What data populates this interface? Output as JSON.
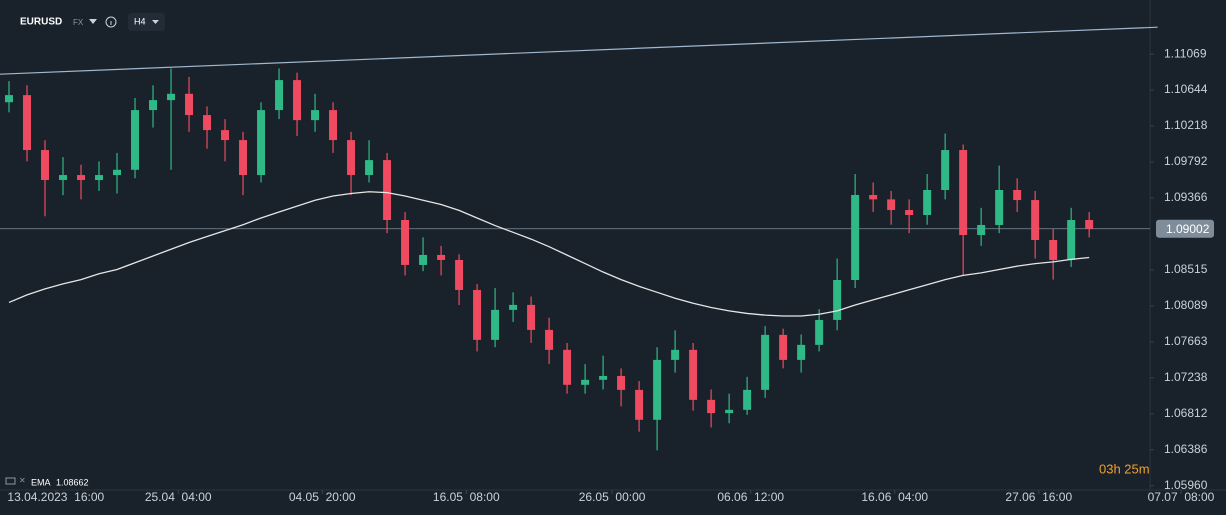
{
  "chart_data": {
    "type": "candlestick",
    "symbol": "EURUSD",
    "market": "FX",
    "timeframe": "H4",
    "colors": {
      "up": "#2fb986",
      "down": "#ef4a5f"
    },
    "open": [
      1.105,
      1.10584,
      1.09934,
      1.09579,
      1.09638,
      1.09579,
      1.09638,
      1.097,
      1.10407,
      1.10525,
      1.106,
      1.10348,
      1.1017,
      1.10052,
      1.09638,
      1.10407,
      1.10762,
      1.10288,
      1.10407,
      1.10052,
      1.09638,
      1.09815,
      1.09106,
      1.08574,
      1.08692,
      1.08633,
      1.08278,
      1.07687,
      1.08042,
      1.08101,
      1.07805,
      1.07569,
      1.07155,
      1.07214,
      1.0726,
      1.07095,
      1.06741,
      1.0745,
      1.07569,
      1.06977,
      1.0682,
      1.06859,
      1.07095,
      1.07746,
      1.0745,
      1.07628,
      1.07923,
      1.08396,
      1.09402,
      1.0935,
      1.09224,
      1.09165,
      1.09461,
      1.09934,
      1.08928,
      1.09047,
      1.09461,
      1.09342,
      1.08869,
      1.08633,
      1.09106
    ],
    "high": [
      1.1075,
      1.107,
      1.1005,
      1.0985,
      1.0976,
      1.098,
      1.099,
      1.1055,
      1.107,
      1.109,
      1.108,
      1.1045,
      1.103,
      1.1015,
      1.105,
      1.109,
      1.1085,
      1.106,
      1.105,
      1.1015,
      1.1005,
      1.099,
      1.092,
      1.089,
      1.088,
      1.087,
      1.0835,
      1.083,
      1.0825,
      1.082,
      1.0795,
      1.0765,
      1.074,
      1.075,
      1.0735,
      1.072,
      1.076,
      1.078,
      1.0765,
      1.071,
      1.0705,
      1.0725,
      1.0785,
      1.0782,
      1.0775,
      1.0805,
      1.0865,
      1.0965,
      1.0955,
      1.0945,
      1.0935,
      1.0965,
      1.1013,
      1.1,
      1.0925,
      1.0975,
      1.096,
      1.0945,
      1.09,
      1.0925,
      1.092
    ],
    "low": [
      1.1038,
      1.098,
      1.0915,
      1.094,
      1.0935,
      1.0945,
      1.0942,
      1.096,
      1.102,
      1.097,
      1.1015,
      1.0995,
      1.098,
      1.094,
      1.0955,
      1.103,
      1.101,
      1.1015,
      1.099,
      1.094,
      1.0955,
      1.0895,
      1.0845,
      1.085,
      1.0845,
      1.081,
      1.0755,
      1.076,
      1.079,
      1.0765,
      1.074,
      1.0705,
      1.0705,
      1.071,
      1.069,
      1.066,
      1.0638,
      1.073,
      1.0685,
      1.0665,
      1.067,
      1.068,
      1.07,
      1.0735,
      1.073,
      1.0755,
      1.078,
      1.083,
      1.092,
      1.0905,
      1.0895,
      1.0905,
      1.0935,
      1.0845,
      1.088,
      1.0895,
      1.092,
      1.0865,
      1.084,
      1.0855,
      1.089
    ],
    "close": [
      1.10584,
      1.09934,
      1.09579,
      1.09638,
      1.09579,
      1.09638,
      1.097,
      1.10407,
      1.10525,
      1.106,
      1.10348,
      1.1017,
      1.10052,
      1.09638,
      1.10407,
      1.10762,
      1.10288,
      1.10407,
      1.10052,
      1.09638,
      1.09815,
      1.09106,
      1.08574,
      1.08692,
      1.08633,
      1.08278,
      1.07687,
      1.08042,
      1.08101,
      1.07805,
      1.07569,
      1.07155,
      1.07214,
      1.0726,
      1.07095,
      1.06741,
      1.0745,
      1.07569,
      1.06977,
      1.0682,
      1.06859,
      1.07095,
      1.07746,
      1.0745,
      1.07628,
      1.07923,
      1.08396,
      1.09402,
      1.0935,
      1.09224,
      1.09165,
      1.09461,
      1.09934,
      1.08928,
      1.09047,
      1.09461,
      1.09342,
      1.08869,
      1.08633,
      1.09106,
      1.09002
    ],
    "ema": {
      "name": "EMA",
      "value": 1.08662,
      "color": "#e6e6e6",
      "values": [
        1.0813,
        1.0822,
        1.0829,
        1.0835,
        1.084,
        1.0847,
        1.0852,
        1.086,
        1.0868,
        1.0876,
        1.0884,
        1.0891,
        1.0898,
        1.0905,
        1.0913,
        1.092,
        1.0927,
        1.0934,
        1.0939,
        1.0942,
        1.0944,
        1.0943,
        1.0939,
        1.0934,
        1.0929,
        1.0922,
        1.0913,
        1.0904,
        1.0896,
        1.0888,
        1.0879,
        1.0869,
        1.0859,
        1.0849,
        1.084,
        1.0832,
        1.0825,
        1.0818,
        1.0812,
        1.0807,
        1.0803,
        1.08,
        1.0798,
        1.0797,
        1.0797,
        1.0799,
        1.0803,
        1.081,
        1.0816,
        1.0822,
        1.0828,
        1.0834,
        1.084,
        1.0845,
        1.0848,
        1.0852,
        1.0856,
        1.0859,
        1.0861,
        1.0864,
        1.08662
      ]
    },
    "trendline": {
      "color": "#9fb8d0",
      "x": [
        -0.5,
        63.8
      ],
      "y": [
        1.10832,
        1.11388
      ]
    },
    "last_price": {
      "value": 1.09002,
      "color": "#7f8d9b"
    },
    "countdown": "03h 25m",
    "xlim": [
      -0.5,
      67.6
    ],
    "xticks": [
      {
        "value": 2.6,
        "label": "13.04.2023  16:00"
      },
      {
        "value": 9.4,
        "label": "25.04  04:00"
      },
      {
        "value": 17.4,
        "label": "04.05  20:00"
      },
      {
        "value": 25.4,
        "label": "16.05  08:00"
      },
      {
        "value": 33.5,
        "label": "26.05  00:00"
      },
      {
        "value": 41.2,
        "label": "06.06  12:00"
      },
      {
        "value": 49.2,
        "label": "16.06  04:00"
      },
      {
        "value": 57.2,
        "label": "27.06  16:00"
      },
      {
        "value": 65.1,
        "label": "07.07  08:00"
      }
    ],
    "ylim": [
      1.0591,
      1.1171
    ],
    "yticks": [
      1.11069,
      1.10644,
      1.10218,
      1.09792,
      1.09366,
      1.08515,
      1.08089,
      1.07663,
      1.07238,
      1.06812,
      1.06386,
      {
        "value": 1.0596,
        "label": "1.05960"
      }
    ]
  }
}
